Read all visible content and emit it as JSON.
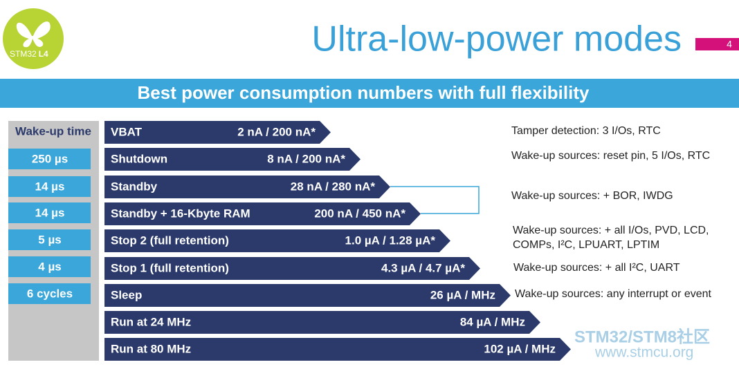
{
  "logo": {
    "brand": "STM32",
    "series": "L4"
  },
  "title": "Ultra-low-power modes",
  "page_number": "4",
  "banner": "Best power consumption numbers with full flexibility",
  "wakeup_header": "Wake-up time",
  "wakeup_times": [
    "250 µs",
    "14 µs",
    "14 µs",
    "5 µs",
    "4 µs",
    "6 cycles"
  ],
  "modes": [
    {
      "name": "VBAT",
      "consumption": "2 nA / 200 nA*"
    },
    {
      "name": "Shutdown",
      "consumption": "8 nA / 200 nA*"
    },
    {
      "name": "Standby",
      "consumption": "28 nA / 280 nA*"
    },
    {
      "name": "Standby + 16-Kbyte RAM",
      "consumption": "200 nA / 450 nA*"
    },
    {
      "name": "Stop 2 (full retention)",
      "consumption": "1.0 µA / 1.28 µA*"
    },
    {
      "name": "Stop 1 (full retention)",
      "consumption": "4.3 µA / 4.7 µA*"
    },
    {
      "name": "Sleep",
      "consumption": "26 µA / MHz"
    },
    {
      "name": "Run at 24 MHz",
      "consumption": "84 µA / MHz"
    },
    {
      "name": "Run at 80 MHz",
      "consumption": "102 µA / MHz"
    }
  ],
  "notes": [
    [
      "Tamper detection: 3 I/Os, RTC"
    ],
    [
      "Wake-up sources: reset pin, 5 I/Os, RTC"
    ],
    [
      "Wake-up sources: + BOR, IWDG"
    ],
    [
      "Wake-up sources: + all I/Os, PVD, LCD,",
      "COMPs, I²C, LPUART, LPTIM"
    ],
    [
      "Wake-up sources: + all I²C, UART"
    ],
    [
      "Wake-up sources: any interrupt or event"
    ]
  ],
  "watermark": {
    "name": "STM32/STM8社区",
    "url": "www.stmcu.org"
  }
}
